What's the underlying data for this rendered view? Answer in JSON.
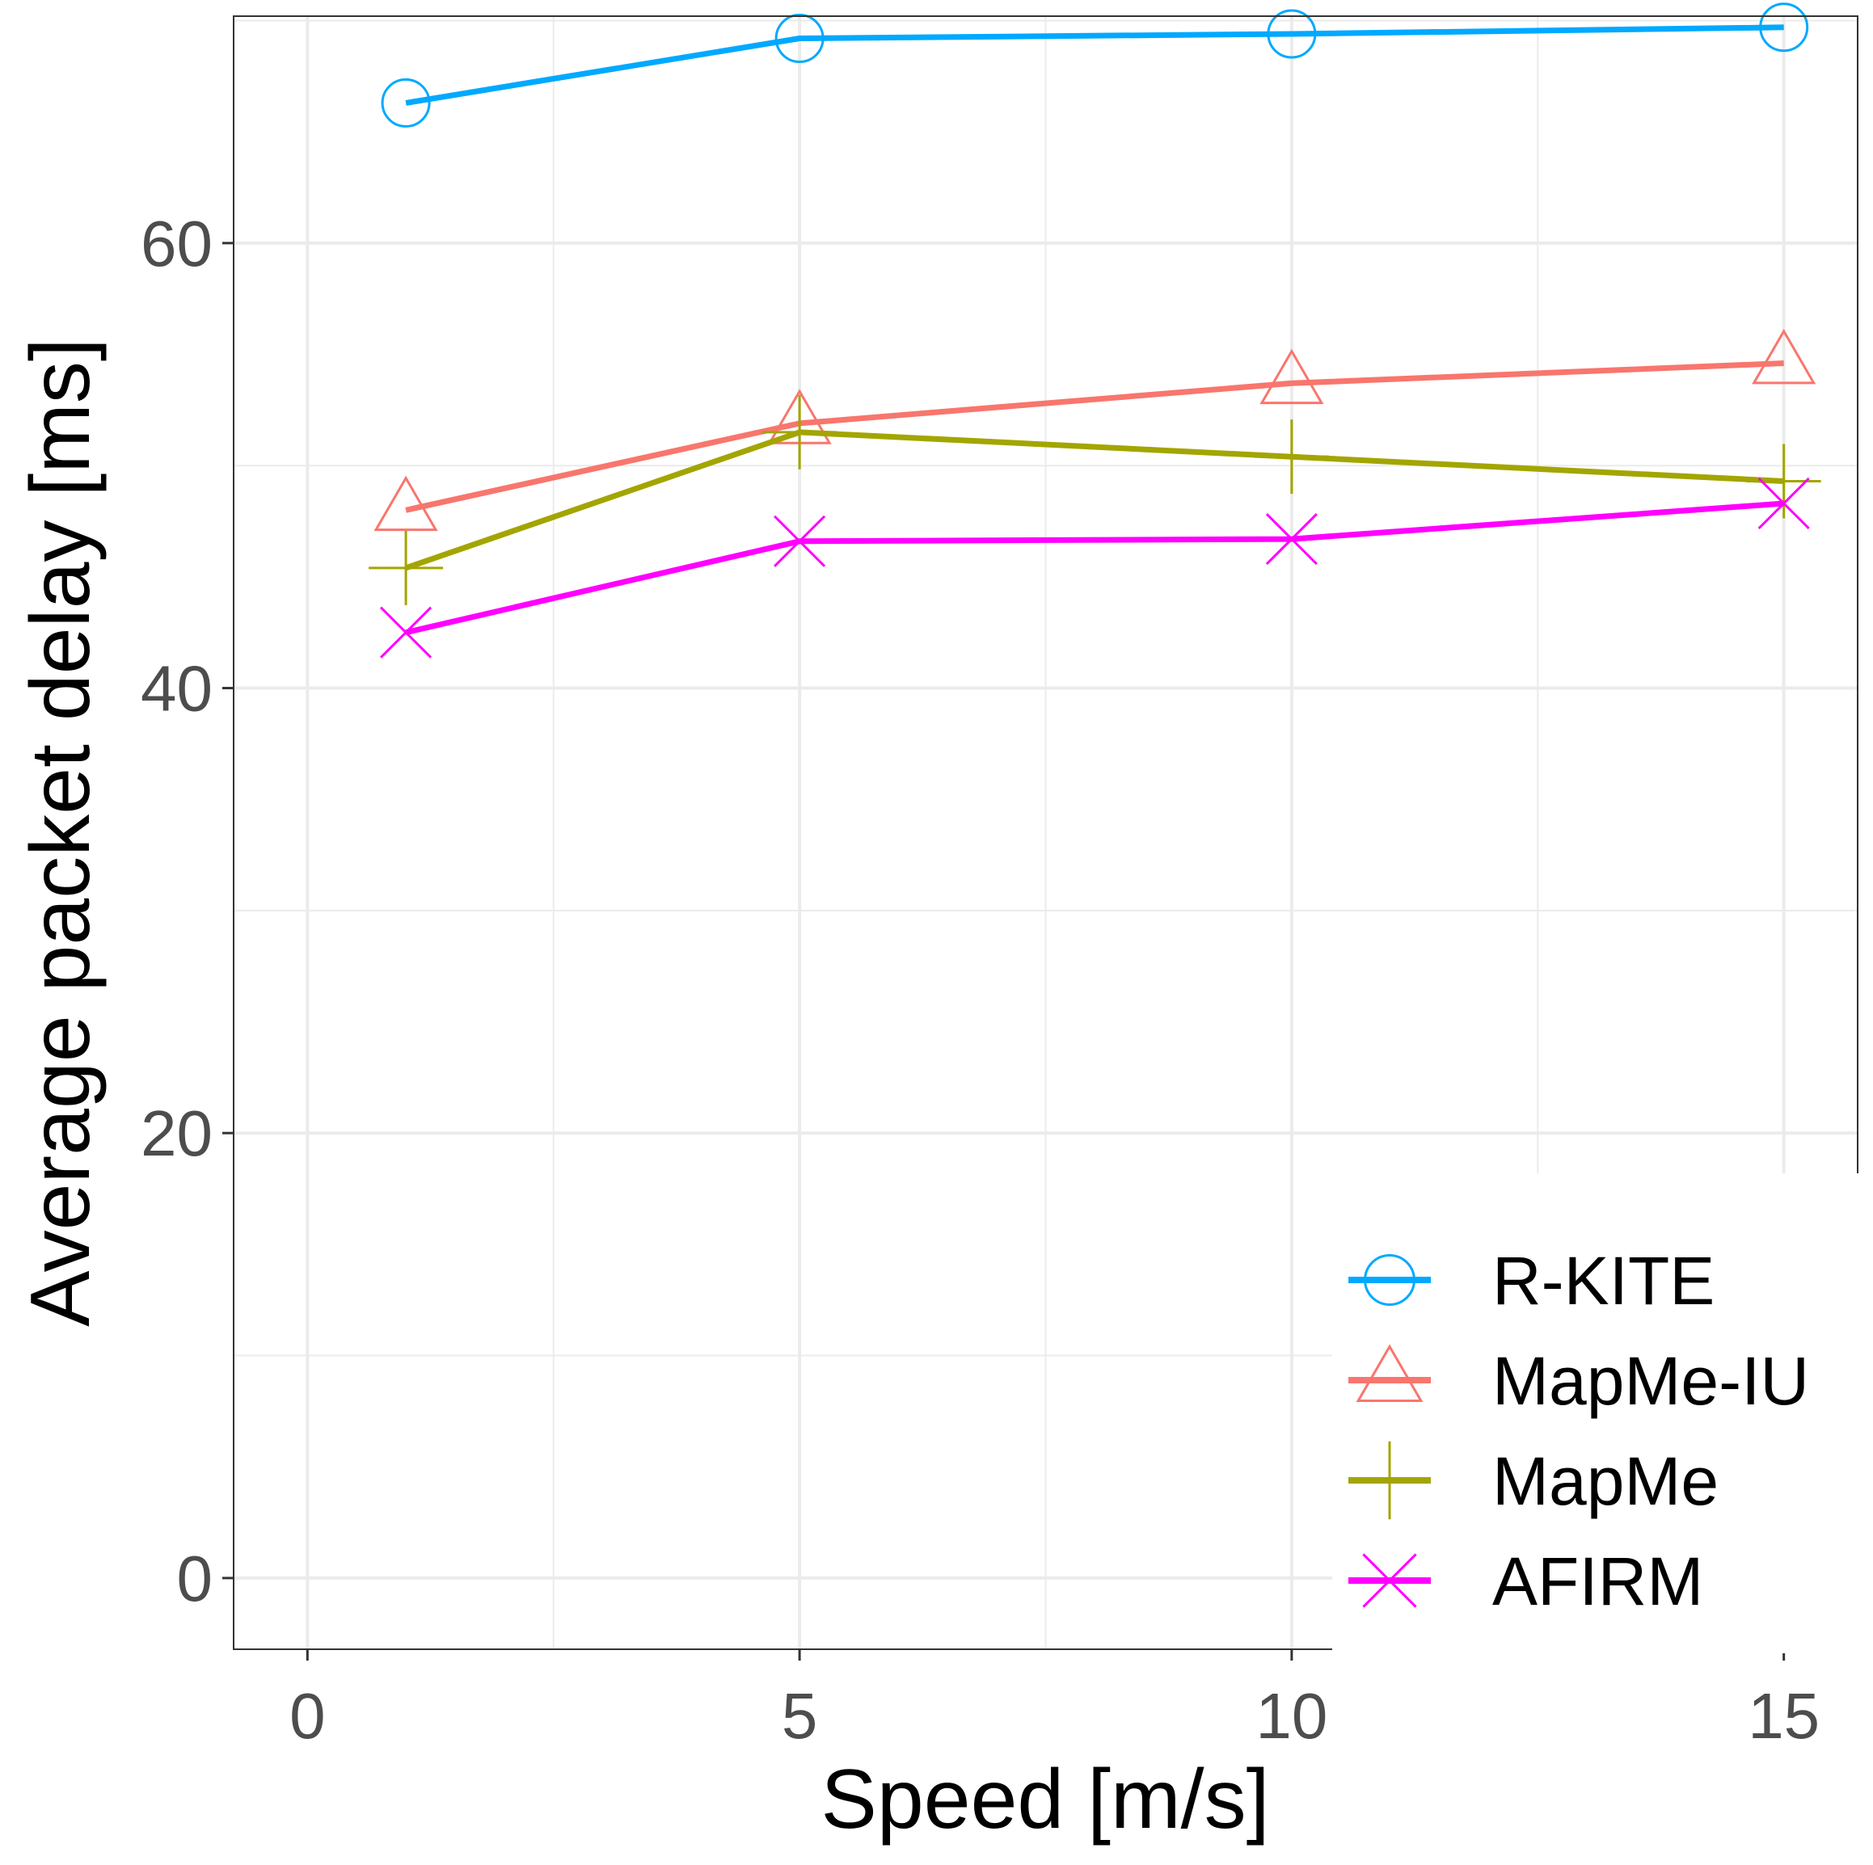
{
  "chart_data": {
    "type": "line",
    "title": "",
    "xlabel": "Speed [m/s]",
    "ylabel": "Average packet delay [ms]",
    "x": [
      1,
      5,
      10,
      15
    ],
    "xlim": [
      -0.75,
      15.75
    ],
    "ylim": [
      -3.2,
      70.2
    ],
    "xticks": [
      0,
      5,
      10,
      15
    ],
    "yticks": [
      0,
      20,
      40,
      60
    ],
    "grid": true,
    "legend_position": "bottom-right",
    "series": [
      {
        "name": "R-KITE",
        "values": [
          66.3,
          69.2,
          69.4,
          69.7
        ],
        "color": "#00a9ff",
        "marker": "circle"
      },
      {
        "name": "MapMe-IU",
        "values": [
          48.0,
          51.9,
          53.7,
          54.6
        ],
        "color": "#f8766d",
        "marker": "triangle"
      },
      {
        "name": "MapMe",
        "values": [
          45.4,
          51.5,
          50.4,
          49.3
        ],
        "color": "#a3a500",
        "marker": "plus"
      },
      {
        "name": "AFIRM",
        "values": [
          42.5,
          46.6,
          46.7,
          48.3
        ],
        "color": "#ff00ff",
        "marker": "cross"
      }
    ]
  }
}
